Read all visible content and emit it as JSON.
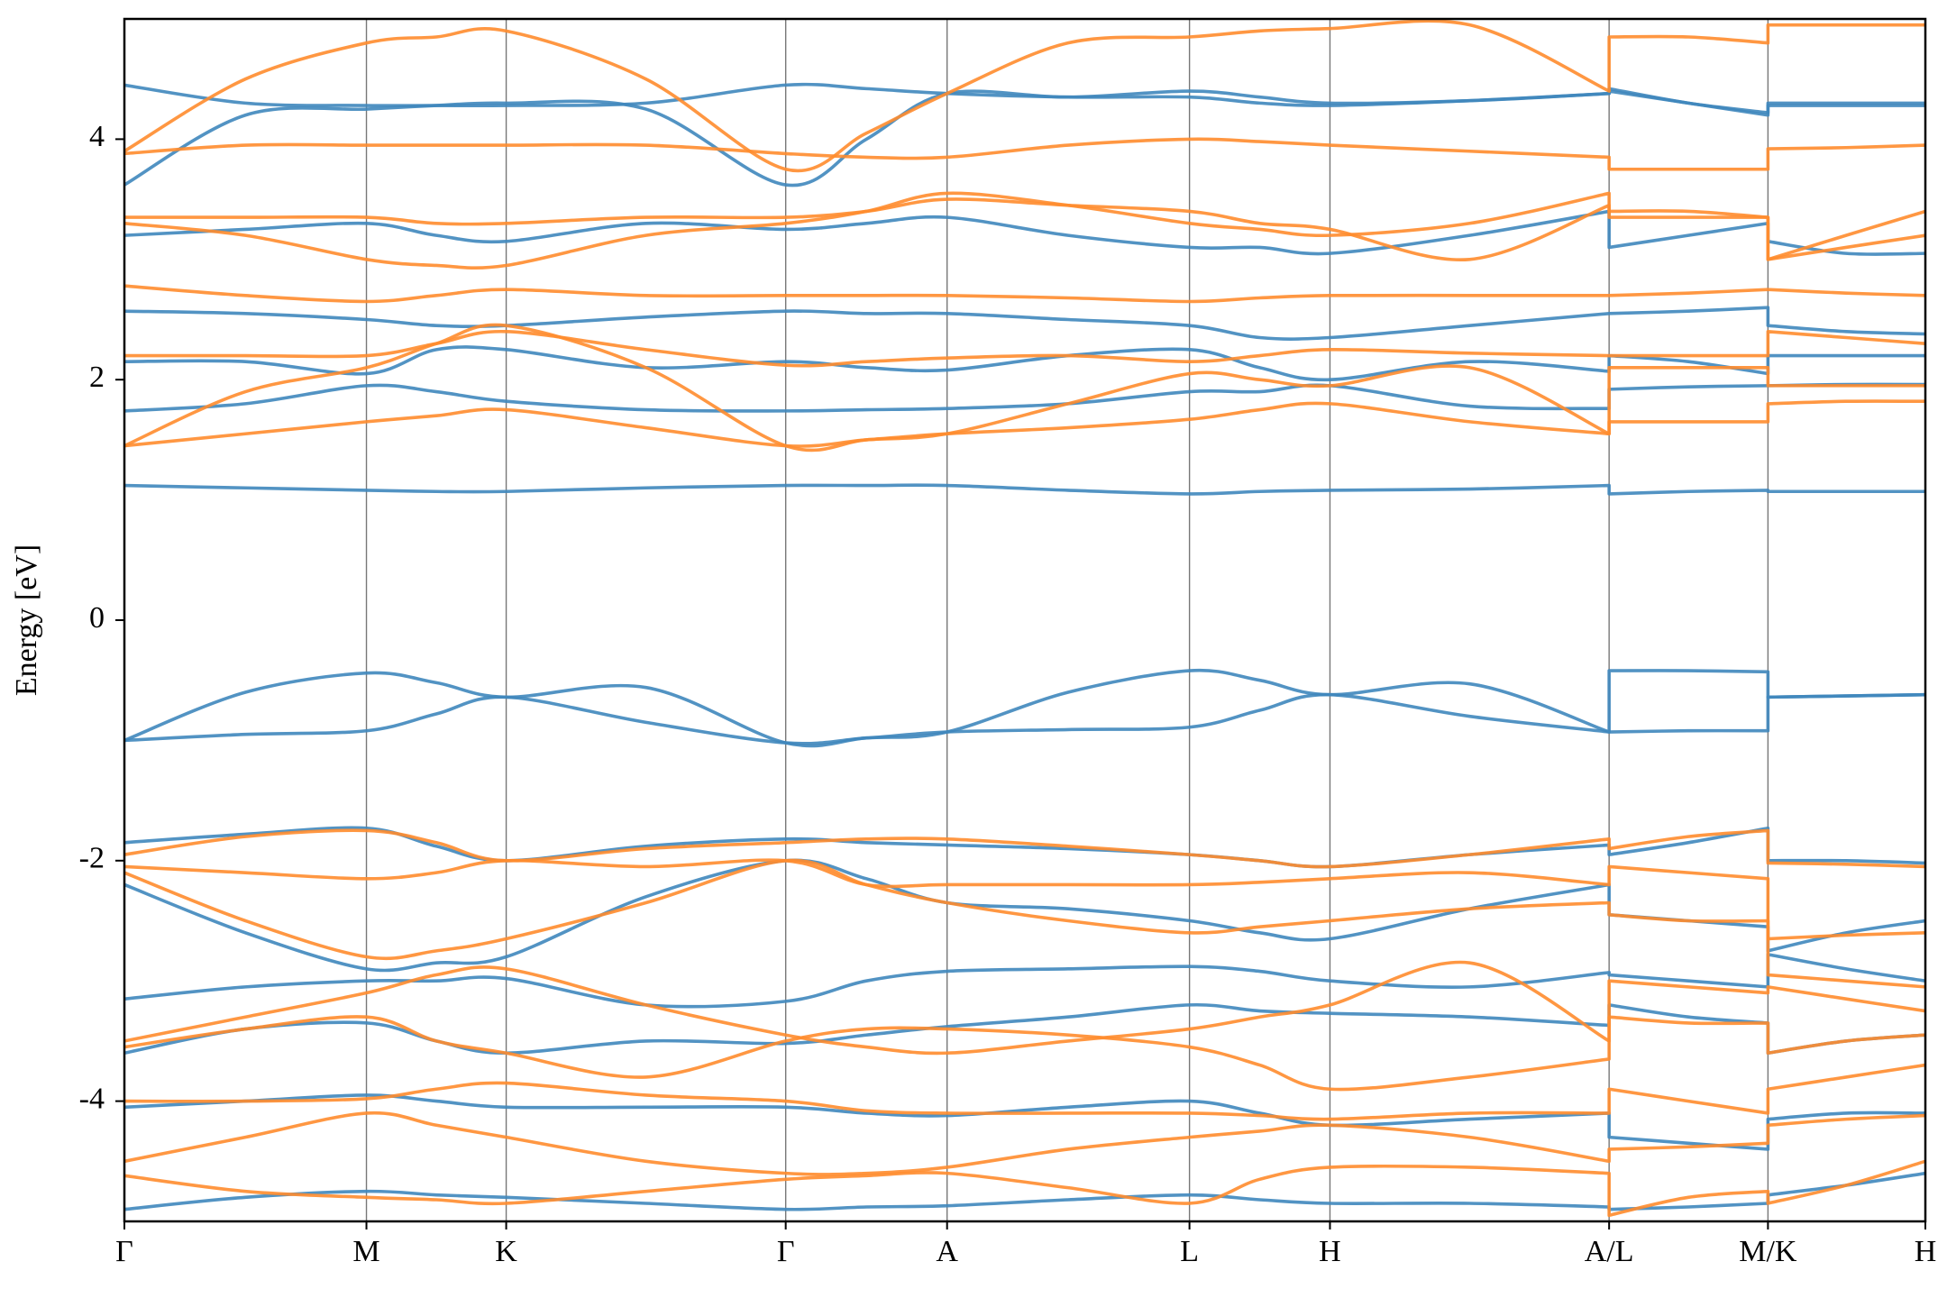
{
  "chart_data": {
    "type": "line",
    "y_label": "Energy [eV]",
    "x": [
      0,
      0.336,
      0.672,
      0.866,
      1.06,
      1.448,
      1.836,
      2.06,
      2.284,
      2.62,
      2.957,
      3.152,
      3.347,
      3.735,
      4.122,
      4.122,
      4.342,
      4.563,
      4.563,
      4.78,
      5.0
    ],
    "xlim": [
      0,
      5.0
    ],
    "xticks": [
      {
        "value": 0,
        "label": "Γ"
      },
      {
        "value": 0.672,
        "label": "M"
      },
      {
        "value": 1.06,
        "label": "K"
      },
      {
        "value": 1.836,
        "label": "Γ"
      },
      {
        "value": 2.284,
        "label": "A"
      },
      {
        "value": 2.957,
        "label": "L"
      },
      {
        "value": 3.347,
        "label": "H"
      },
      {
        "value": 4.122,
        "label": "A/L"
      },
      {
        "value": 4.563,
        "label": "M/K"
      },
      {
        "value": 5.0,
        "label": "H"
      }
    ],
    "ylim": [
      -5,
      5
    ],
    "yticks": [
      -4,
      -2,
      0,
      2,
      4
    ],
    "grid": true,
    "series": [
      {
        "color": "#3f87bd",
        "values": [
          -1.0,
          -0.6,
          -0.44,
          -0.52,
          -0.64,
          -0.56,
          -1.02,
          -0.98,
          -0.93,
          -0.6,
          -0.42,
          -0.5,
          -0.62,
          -0.53,
          -0.93,
          -0.42,
          -0.42,
          -0.43,
          -0.64,
          -0.63,
          -0.62
        ]
      },
      {
        "color": "#3f87bd",
        "values": [
          -1.0,
          -0.95,
          -0.92,
          -0.78,
          -0.64,
          -0.85,
          -1.02,
          -0.98,
          -0.93,
          -0.91,
          -0.89,
          -0.75,
          -0.62,
          -0.8,
          -0.93,
          -0.93,
          -0.92,
          -0.92,
          -0.64,
          -0.63,
          -0.62
        ]
      },
      {
        "color": "#3f87bd",
        "values": [
          1.12,
          1.1,
          1.08,
          1.07,
          1.07,
          1.1,
          1.12,
          1.12,
          1.12,
          1.08,
          1.05,
          1.07,
          1.08,
          1.09,
          1.12,
          1.05,
          1.07,
          1.08,
          1.07,
          1.07,
          1.07
        ]
      },
      {
        "color": "#3f87bd",
        "values": [
          1.74,
          1.8,
          1.95,
          1.9,
          1.82,
          1.75,
          1.74,
          1.75,
          1.76,
          1.8,
          1.9,
          1.9,
          1.95,
          1.78,
          1.76,
          1.92,
          1.94,
          1.95,
          1.95,
          1.96,
          1.96
        ]
      },
      {
        "color": "#3f87bd",
        "values": [
          2.15,
          2.15,
          2.05,
          2.25,
          2.25,
          2.1,
          2.15,
          2.1,
          2.08,
          2.2,
          2.25,
          2.1,
          2.0,
          2.15,
          2.07,
          2.2,
          2.15,
          2.05,
          2.2,
          2.2,
          2.2
        ]
      },
      {
        "color": "#3f87bd",
        "values": [
          2.57,
          2.55,
          2.5,
          2.45,
          2.45,
          2.52,
          2.57,
          2.55,
          2.55,
          2.5,
          2.45,
          2.35,
          2.35,
          2.45,
          2.55,
          2.55,
          2.57,
          2.6,
          2.45,
          2.4,
          2.38
        ]
      },
      {
        "color": "#3f87bd",
        "values": [
          3.2,
          3.25,
          3.3,
          3.2,
          3.15,
          3.3,
          3.25,
          3.3,
          3.35,
          3.2,
          3.1,
          3.1,
          3.05,
          3.2,
          3.4,
          3.1,
          3.2,
          3.3,
          3.15,
          3.05,
          3.05
        ]
      },
      {
        "color": "#3f87bd",
        "values": [
          4.45,
          4.3,
          4.28,
          4.28,
          4.28,
          4.3,
          4.45,
          4.42,
          4.38,
          4.35,
          4.35,
          4.3,
          4.28,
          4.32,
          4.38,
          4.42,
          4.3,
          4.22,
          4.28,
          4.28,
          4.28
        ]
      },
      {
        "color": "#3f87bd",
        "values": [
          3.62,
          4.2,
          4.25,
          4.28,
          4.3,
          4.25,
          3.62,
          4.0,
          4.38,
          4.35,
          4.4,
          4.35,
          4.3,
          4.32,
          4.38,
          4.4,
          4.3,
          4.2,
          4.3,
          4.3,
          4.3
        ]
      },
      {
        "color": "#3f87bd",
        "values": [
          -1.85,
          -1.78,
          -1.73,
          -1.88,
          -2.0,
          -1.88,
          -1.82,
          -1.85,
          -1.87,
          -1.9,
          -1.95,
          -2.0,
          -2.05,
          -1.95,
          -1.87,
          -1.95,
          -1.85,
          -1.73,
          -2.0,
          -2.0,
          -2.02
        ]
      },
      {
        "color": "#3f87bd",
        "values": [
          -2.2,
          -2.6,
          -2.9,
          -2.85,
          -2.8,
          -2.3,
          -2.0,
          -2.15,
          -2.35,
          -2.4,
          -2.5,
          -2.6,
          -2.65,
          -2.4,
          -2.2,
          -2.45,
          -2.5,
          -2.55,
          -2.75,
          -2.6,
          -2.5
        ]
      },
      {
        "color": "#3f87bd",
        "values": [
          -3.15,
          -3.05,
          -3.0,
          -3.0,
          -2.98,
          -3.2,
          -3.17,
          -3.0,
          -2.92,
          -2.9,
          -2.88,
          -2.92,
          -3.0,
          -3.05,
          -2.93,
          -2.95,
          -3.0,
          -3.05,
          -2.78,
          -2.9,
          -3.0
        ]
      },
      {
        "color": "#3f87bd",
        "values": [
          -3.6,
          -3.4,
          -3.35,
          -3.5,
          -3.6,
          -3.5,
          -3.52,
          -3.45,
          -3.38,
          -3.3,
          -3.2,
          -3.25,
          -3.27,
          -3.3,
          -3.37,
          -3.2,
          -3.3,
          -3.35,
          -3.6,
          -3.5,
          -3.45
        ]
      },
      {
        "color": "#3f87bd",
        "values": [
          -4.05,
          -4.0,
          -3.95,
          -4.0,
          -4.05,
          -4.05,
          -4.05,
          -4.1,
          -4.12,
          -4.05,
          -4.0,
          -4.1,
          -4.2,
          -4.15,
          -4.1,
          -4.3,
          -4.35,
          -4.4,
          -4.15,
          -4.1,
          -4.1
        ]
      },
      {
        "color": "#3f87bd",
        "values": [
          -4.9,
          -4.8,
          -4.75,
          -4.78,
          -4.8,
          -4.85,
          -4.9,
          -4.88,
          -4.87,
          -4.82,
          -4.78,
          -4.82,
          -4.85,
          -4.85,
          -4.88,
          -4.9,
          -4.88,
          -4.85,
          -4.78,
          -4.7,
          -4.6
        ]
      },
      {
        "color": "#ff8c2e",
        "values": [
          1.45,
          1.55,
          1.65,
          1.7,
          1.75,
          1.6,
          1.45,
          1.5,
          1.55,
          1.6,
          1.67,
          1.75,
          1.8,
          1.65,
          1.55,
          1.65,
          1.65,
          1.65,
          1.8,
          1.82,
          1.82
        ]
      },
      {
        "color": "#ff8c2e",
        "values": [
          1.45,
          1.9,
          2.1,
          2.3,
          2.45,
          2.1,
          1.45,
          1.5,
          1.55,
          1.8,
          2.05,
          2.0,
          1.95,
          2.1,
          1.55,
          2.1,
          2.1,
          2.1,
          1.95,
          1.95,
          1.95
        ]
      },
      {
        "color": "#ff8c2e",
        "values": [
          2.2,
          2.2,
          2.2,
          2.3,
          2.4,
          2.25,
          2.12,
          2.15,
          2.18,
          2.2,
          2.15,
          2.2,
          2.25,
          2.22,
          2.2,
          2.2,
          2.2,
          2.2,
          2.4,
          2.35,
          2.3
        ]
      },
      {
        "color": "#ff8c2e",
        "values": [
          2.78,
          2.7,
          2.65,
          2.7,
          2.75,
          2.7,
          2.7,
          2.7,
          2.7,
          2.68,
          2.65,
          2.68,
          2.7,
          2.7,
          2.7,
          2.7,
          2.72,
          2.75,
          2.75,
          2.72,
          2.7
        ]
      },
      {
        "color": "#ff8c2e",
        "values": [
          3.3,
          3.2,
          3.0,
          2.95,
          2.95,
          3.2,
          3.3,
          3.4,
          3.55,
          3.45,
          3.3,
          3.25,
          3.2,
          3.3,
          3.55,
          3.35,
          3.35,
          3.35,
          3.0,
          3.1,
          3.2
        ]
      },
      {
        "color": "#ff8c2e",
        "values": [
          3.35,
          3.35,
          3.35,
          3.3,
          3.3,
          3.35,
          3.35,
          3.4,
          3.5,
          3.45,
          3.4,
          3.3,
          3.25,
          3.0,
          3.45,
          3.4,
          3.4,
          3.35,
          3.0,
          3.2,
          3.4
        ]
      },
      {
        "color": "#ff8c2e",
        "values": [
          3.88,
          3.95,
          3.95,
          3.95,
          3.95,
          3.95,
          3.88,
          3.85,
          3.85,
          3.95,
          4.0,
          3.98,
          3.95,
          3.9,
          3.85,
          3.75,
          3.75,
          3.75,
          3.92,
          3.93,
          3.95
        ]
      },
      {
        "color": "#ff8c2e",
        "values": [
          3.9,
          4.5,
          4.8,
          4.85,
          4.9,
          4.5,
          3.75,
          4.05,
          4.38,
          4.8,
          4.85,
          4.9,
          4.92,
          4.95,
          4.4,
          4.85,
          4.85,
          4.8,
          4.95,
          4.95,
          4.95
        ]
      },
      {
        "color": "#ff8c2e",
        "values": [
          -1.95,
          -1.8,
          -1.75,
          -1.85,
          -2.0,
          -1.9,
          -1.85,
          -1.82,
          -1.82,
          -1.88,
          -1.95,
          -2.0,
          -2.05,
          -1.95,
          -1.82,
          -1.9,
          -1.8,
          -1.75,
          -2.02,
          -2.03,
          -2.05
        ]
      },
      {
        "color": "#ff8c2e",
        "values": [
          -2.05,
          -2.1,
          -2.15,
          -2.1,
          -2.0,
          -2.05,
          -2.0,
          -2.2,
          -2.2,
          -2.2,
          -2.2,
          -2.18,
          -2.15,
          -2.1,
          -2.2,
          -2.05,
          -2.1,
          -2.15,
          -2.65,
          -2.62,
          -2.6
        ]
      },
      {
        "color": "#ff8c2e",
        "values": [
          -2.1,
          -2.5,
          -2.8,
          -2.75,
          -2.65,
          -2.35,
          -2.0,
          -2.2,
          -2.35,
          -2.5,
          -2.6,
          -2.55,
          -2.5,
          -2.4,
          -2.35,
          -2.45,
          -2.5,
          -2.5,
          -2.95,
          -3.0,
          -3.05
        ]
      },
      {
        "color": "#ff8c2e",
        "values": [
          -3.5,
          -3.3,
          -3.1,
          -2.95,
          -2.9,
          -3.2,
          -3.45,
          -3.55,
          -3.6,
          -3.5,
          -3.4,
          -3.3,
          -3.2,
          -2.85,
          -3.5,
          -3.0,
          -3.05,
          -3.1,
          -3.05,
          -3.15,
          -3.25
        ]
      },
      {
        "color": "#ff8c2e",
        "values": [
          -3.55,
          -3.4,
          -3.3,
          -3.5,
          -3.6,
          -3.8,
          -3.5,
          -3.4,
          -3.4,
          -3.45,
          -3.55,
          -3.7,
          -3.9,
          -3.8,
          -3.65,
          -3.3,
          -3.35,
          -3.35,
          -3.6,
          -3.5,
          -3.45
        ]
      },
      {
        "color": "#ff8c2e",
        "values": [
          -4.0,
          -4.0,
          -3.98,
          -3.9,
          -3.85,
          -3.95,
          -4.0,
          -4.08,
          -4.1,
          -4.1,
          -4.1,
          -4.12,
          -4.15,
          -4.1,
          -4.1,
          -3.9,
          -4.0,
          -4.1,
          -3.9,
          -3.8,
          -3.7
        ]
      },
      {
        "color": "#ff8c2e",
        "values": [
          -4.5,
          -4.3,
          -4.1,
          -4.2,
          -4.3,
          -4.5,
          -4.6,
          -4.6,
          -4.55,
          -4.4,
          -4.3,
          -4.25,
          -4.2,
          -4.3,
          -4.5,
          -4.4,
          -4.38,
          -4.35,
          -4.2,
          -4.15,
          -4.12
        ]
      },
      {
        "color": "#ff8c2e",
        "values": [
          -4.62,
          -4.75,
          -4.8,
          -4.82,
          -4.85,
          -4.75,
          -4.65,
          -4.62,
          -4.6,
          -4.72,
          -4.85,
          -4.65,
          -4.55,
          -4.55,
          -4.6,
          -4.95,
          -4.8,
          -4.75,
          -4.85,
          -4.7,
          -4.5
        ]
      }
    ]
  }
}
